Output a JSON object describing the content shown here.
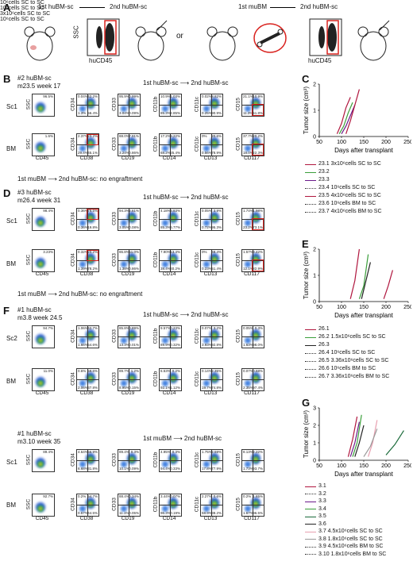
{
  "panelA": {
    "label": "A",
    "hu_arrow": {
      "from": "1st huBM-sc",
      "to": "2nd huBM-sc"
    },
    "or": "or",
    "mu_arrow": {
      "from": "1st muBM",
      "to": "2nd huBM-sc"
    },
    "axis_ssc": "SSC",
    "axis_hucd45": "huCD45"
  },
  "panelB": {
    "label": "B",
    "sample": "#2 huBM-sc",
    "subtitle": "m23.5 week 17",
    "transfer": "1st huBM-sc ⟶ 2nd huBM-sc",
    "rows": [
      "Sc1",
      "BM"
    ],
    "no_engraft": "1st muBM ⟶ 2nd huBM-sc: no engraftment",
    "gates": [
      "96.5%",
      "1.6%"
    ],
    "xlabels": [
      "CD45",
      "CD38",
      "CD19",
      "CD14",
      "CD13",
      "CD117"
    ],
    "ylabels": [
      "SSC",
      "CD34",
      "CD33",
      "CD11b",
      "CD11c",
      "CD15"
    ],
    "quads_sc1": [
      [
        "0.04%",
        "42.2%",
        "1.3%",
        "56.4%"
      ],
      [
        "95.9%",
        "0.99%",
        "3.04%",
        "0.09%"
      ],
      [
        "10.9%",
        "1.03%",
        "85.3%",
        "2.85%"
      ],
      [
        "0.02%",
        "8.82%",
        "0.25%",
        "90.9%"
      ],
      [
        "21.1%",
        "10.9%",
        "11.3%",
        "51.8%"
      ]
    ],
    "quads_bm": [
      [
        "2.37%",
        "23.2%",
        "29.4%",
        "45.1%"
      ],
      [
        "88.0%",
        "7.91%",
        "3.24%",
        "0.86%"
      ],
      [
        "17.2%",
        "9.22%",
        "68.2%",
        "25.4%"
      ],
      [
        "0%",
        "20.6%",
        "0.56%",
        "78.9%"
      ],
      [
        "37.7%",
        "20.2%",
        "18.0%",
        "22.3%"
      ]
    ]
  },
  "panelC": {
    "label": "C",
    "ylabel": "Tumor size (cm³)",
    "xlabel": "Days after transplant",
    "xticks": [
      "50",
      "100",
      "150",
      "200",
      "250"
    ],
    "yticks": [
      "0",
      "1",
      "2"
    ],
    "legend": [
      {
        "id": "23.1",
        "text": "23.1 3x10⁶cells SC to SC",
        "color": "#b0163e",
        "dash": false
      },
      {
        "id": "23.2",
        "text": "23.2",
        "color": "#3a9e3a",
        "dash": false
      },
      {
        "id": "23.3",
        "text": "23.3",
        "color": "#6a1a8a",
        "dash": false
      },
      {
        "id": "23.4",
        "text": "23.4 10⁶cells SC to SC",
        "color": "#444",
        "dash": true
      },
      {
        "id": "23.5",
        "text": "23.5 4x10⁶cells SC to SC",
        "color": "#b0163e",
        "dash": false
      },
      {
        "id": "23.6",
        "text": "23.6 10⁶cells BM to SC",
        "color": "#333",
        "dash": true
      },
      {
        "id": "23.7",
        "text": "23.7 4x10⁶cells BM to SC",
        "color": "#333",
        "dash": true
      }
    ],
    "group_note": "10⁶cells SC to SC"
  },
  "panelD": {
    "label": "D",
    "sample": "#3 huBM-sc",
    "subtitle": "m26.4 week 31",
    "transfer": "1st huBM-sc ⟶ 2nd huBM-sc",
    "rows": [
      "Sc1",
      "BM"
    ],
    "no_engraft": "1st muBM ⟶ 2nd huBM-sc: no engraftment",
    "gates": [
      "98.4%",
      "3.23%"
    ],
    "quads_sc1": [
      [
        "0.36%",
        "79.5%",
        "0.36%",
        "19.8%"
      ],
      [
        "94.3%",
        "2.61%",
        "3.05%",
        "0.08%"
      ],
      [
        "4.18%",
        "3.83%",
        "85.3%",
        "6.77%"
      ],
      [
        "0.05%",
        "3.9%",
        "0.72%",
        "95.3%"
      ],
      [
        "1.74%",
        "1.98%",
        "23.2%",
        "73.1%"
      ]
    ],
    "quads_bm": [
      [
        "0.32%",
        "20.2%",
        "1.39%",
        "78.2%"
      ],
      [
        "86.8%",
        "11.0%",
        "1.38%",
        "0.86%"
      ],
      [
        "7.90%",
        "13.4%",
        "38.4%",
        "40.2%"
      ],
      [
        "0%",
        "48.4%",
        "0.23%",
        "51.4%"
      ],
      [
        "1.57%",
        "3.42%",
        "12.1%",
        "82.9%"
      ]
    ]
  },
  "panelE": {
    "label": "E",
    "ylabel": "Tumor size (cm³)",
    "xlabel": "Days after transplant",
    "xticks": [
      "50",
      "100",
      "150",
      "200",
      "250"
    ],
    "yticks": [
      "0",
      "1",
      "2"
    ],
    "legend": [
      {
        "text": "26.1",
        "color": "#b0163e",
        "dash": false
      },
      {
        "text": "26.2 1.5x10⁶cells SC to SC",
        "color": "#3a9e3a",
        "dash": false
      },
      {
        "text": "26.3",
        "color": "#222",
        "dash": false
      },
      {
        "text": "26.4 10⁶cells SC to SC",
        "color": "#333",
        "dash": true
      },
      {
        "text": "26.5 3.36x10⁶cells SC to SC",
        "color": "#333",
        "dash": true
      },
      {
        "text": "26.6 10⁶cells BM to SC",
        "color": "#333",
        "dash": true
      },
      {
        "text": "26.7 3.36x10⁶cells BM to SC",
        "color": "#333",
        "dash": true
      }
    ]
  },
  "panelF": {
    "label": "F",
    "sample1": "#1 huBM-sc",
    "subtitle1": "m3.8 week 24.5",
    "transfer1": "1st huBM-sc ⟶ 2nd huBM-sc",
    "rows1": [
      "Sc2",
      "BM"
    ],
    "gates1": [
      "94.7%",
      "11.0%"
    ],
    "sample2": "#1 huBM-sc",
    "subtitle2": "m3.10 week 35",
    "transfer2": "1st muBM ⟶ 2nd huBM-sc",
    "rows2": [
      "Sc1",
      "BM"
    ],
    "gates2": [
      "89.4%",
      "92.7%"
    ],
    "quads_r1": [
      [
        "1.06%",
        "42.7%",
        "1.66%",
        "54.6%"
      ],
      [
        "85.8%",
        "0.89%",
        "13.3%",
        "0.01%"
      ],
      [
        "9.57%",
        "0.23%",
        "89.9%",
        "0.32%"
      ],
      [
        "0.07%",
        "3.2%",
        "3.93%",
        "92.8%"
      ],
      [
        "0.05%",
        "0.3%",
        "1.63%",
        "98.0%"
      ]
    ],
    "quads_r2": [
      [
        "0.6%",
        "59.6%",
        "2.06%",
        "37.8%"
      ],
      [
        "89.7%",
        "1.2%",
        "8.95%",
        "0.15%"
      ],
      [
        "6.53%",
        "0.2%",
        "92.1%",
        "1.12%"
      ],
      [
        "0.14%",
        "2.35%",
        "19.7%",
        "74.8%"
      ],
      [
        "0.07%",
        "0.68%",
        "2.35%",
        "97.4%"
      ]
    ],
    "quads_r3": [
      [
        "4.64%",
        "56.9%",
        "6.68%",
        "31.8%"
      ],
      [
        "89.4%",
        "0.3%",
        "10.1%",
        "0.09%"
      ],
      [
        "4.95%",
        "0.3%",
        "94.4%",
        "0.33%"
      ],
      [
        "1.75%",
        "2.59%",
        "17.8%",
        "77.9%"
      ],
      [
        "8.13%",
        "2.22%",
        "1.73%",
        "93.7%"
      ]
    ],
    "quads_r4": [
      [
        "0.2%",
        "54.7%",
        "0.57%",
        "44.5%"
      ],
      [
        "88.4%",
        "0.34%",
        "11.1%",
        "0.05%"
      ],
      [
        "3.44%",
        "0.07%",
        "96.3%",
        "0.19%"
      ],
      [
        "2.27%",
        "0.6%",
        "58.9%",
        "38.2%"
      ],
      [
        "0.2%",
        "1.65%",
        "1.67%",
        "96.5%"
      ]
    ]
  },
  "panelG": {
    "label": "G",
    "ylabel": "Tumor size (cm³)",
    "xlabel": "Days after transplant",
    "xticks": [
      "50",
      "100",
      "150",
      "200",
      "250"
    ],
    "yticks": [
      "0",
      "1",
      "2",
      "3"
    ],
    "legend": [
      {
        "text": "3.1",
        "color": "#b0163e",
        "dash": false
      },
      {
        "text": "3.2",
        "color": "#333",
        "dash": true
      },
      {
        "text": "3.3",
        "color": "#6a1a8a",
        "dash": false
      },
      {
        "text": "3.4",
        "color": "#3a9e3a",
        "dash": false
      },
      {
        "text": "3.5",
        "color": "#1a6a3a",
        "dash": false
      },
      {
        "text": "3.6",
        "color": "#222",
        "dash": false
      },
      {
        "text": "3.7 4.5x10⁶cells SC to SC",
        "color": "#e8a0b0",
        "dash": false
      },
      {
        "text": "3.8 1.8x10⁶cells SC to SC",
        "color": "#999",
        "dash": false
      },
      {
        "text": "3.9 4.5x10⁶cells BM to SC",
        "color": "#333",
        "dash": true
      },
      {
        "text": "3.10 1.8x10⁶cells BM to SC",
        "color": "#333",
        "dash": true
      }
    ],
    "notes": [
      "10⁶cells SC to SC",
      "3x10⁶cells SC to SC",
      "10⁶cells SC to SC"
    ]
  },
  "chart_data": [
    {
      "type": "line",
      "title": "",
      "xlabel": "Days after transplant",
      "ylabel": "Tumor size (cm³)",
      "xlim": [
        50,
        250
      ],
      "ylim": [
        0,
        2
      ],
      "series": [
        {
          "name": "23.1",
          "x": [
            90,
            100,
            110,
            120
          ],
          "y": [
            0.1,
            0.5,
            1.1,
            1.5
          ]
        },
        {
          "name": "23.2",
          "x": [
            95,
            105,
            115,
            125
          ],
          "y": [
            0.1,
            0.4,
            0.9,
            1.3
          ]
        },
        {
          "name": "23.3",
          "x": [
            100,
            110,
            120,
            130
          ],
          "y": [
            0.1,
            0.4,
            0.8,
            1.2
          ]
        },
        {
          "name": "23.5",
          "x": [
            110,
            120,
            130,
            140
          ],
          "y": [
            0.1,
            0.6,
            1.2,
            1.8
          ]
        }
      ]
    },
    {
      "type": "line",
      "title": "",
      "xlabel": "Days after transplant",
      "ylabel": "Tumor size (cm³)",
      "xlim": [
        50,
        250
      ],
      "ylim": [
        0,
        2
      ],
      "series": [
        {
          "name": "26.1",
          "x": [
            120,
            130,
            140
          ],
          "y": [
            0.1,
            0.8,
            2.0
          ]
        },
        {
          "name": "26.2",
          "x": [
            140,
            150,
            160
          ],
          "y": [
            0.1,
            0.6,
            1.8
          ]
        },
        {
          "name": "26.3",
          "x": [
            145,
            155,
            165
          ],
          "y": [
            0.1,
            0.8,
            1.5
          ]
        },
        {
          "name": "26.1b",
          "x": [
            195,
            205,
            215
          ],
          "y": [
            0.1,
            0.6,
            1.2
          ]
        }
      ]
    },
    {
      "type": "line",
      "title": "",
      "xlabel": "Days after transplant",
      "ylabel": "Tumor size (cm³)",
      "xlim": [
        50,
        250
      ],
      "ylim": [
        0,
        3
      ],
      "series": [
        {
          "name": "3.1",
          "x": [
            115,
            125,
            135
          ],
          "y": [
            0.2,
            1.2,
            2.5
          ]
        },
        {
          "name": "3.3",
          "x": [
            120,
            130,
            140
          ],
          "y": [
            0.2,
            1.0,
            2.2
          ]
        },
        {
          "name": "3.4",
          "x": [
            125,
            135,
            145
          ],
          "y": [
            0.2,
            1.0,
            2.6
          ]
        },
        {
          "name": "3.6",
          "x": [
            130,
            140,
            150
          ],
          "y": [
            0.2,
            1.0,
            2.0
          ]
        },
        {
          "name": "3.7",
          "x": [
            160,
            170,
            180
          ],
          "y": [
            0.2,
            1.0,
            2.3
          ]
        },
        {
          "name": "3.8",
          "x": [
            150,
            165,
            180
          ],
          "y": [
            0.2,
            0.8,
            1.8
          ]
        },
        {
          "name": "3.5",
          "x": [
            200,
            220,
            240
          ],
          "y": [
            0.3,
            0.9,
            1.7
          ]
        }
      ]
    }
  ]
}
